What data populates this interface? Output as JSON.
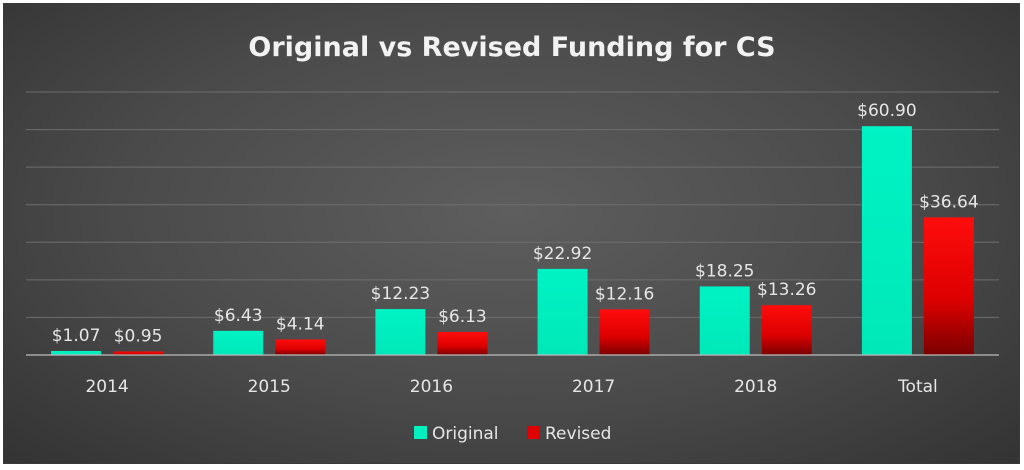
{
  "chart_data": {
    "type": "bar",
    "title": "Original vs Revised Funding for CS",
    "xlabel": "",
    "ylabel": "",
    "categories": [
      "2014",
      "2015",
      "2016",
      "2017",
      "2018",
      "Total"
    ],
    "series": [
      {
        "name": "Original",
        "values": [
          1.07,
          6.43,
          12.23,
          22.92,
          18.25,
          60.9
        ],
        "labels": [
          "$1.07",
          "$6.43",
          "$12.23",
          "$22.92",
          "$18.25",
          "$60.90"
        ],
        "color": "#00f0c0"
      },
      {
        "name": "Revised",
        "values": [
          0.95,
          4.14,
          6.13,
          12.16,
          13.26,
          36.64
        ],
        "labels": [
          "$0.95",
          "$4.14",
          "$6.13",
          "$12.16",
          "$13.26",
          "$36.64"
        ],
        "color": "#e00000"
      }
    ],
    "ylim": [
      0,
      70
    ],
    "gridlines": true,
    "legend_position": "bottom"
  }
}
